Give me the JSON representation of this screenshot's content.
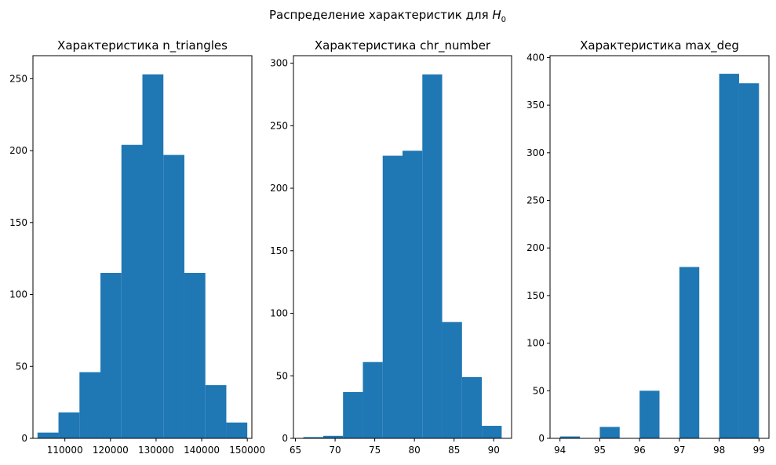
{
  "figure": {
    "suptitle_prefix": "Распределение характеристик для ",
    "suptitle_symbol": "H",
    "suptitle_subscript": "0"
  },
  "colors": {
    "bar": "#1f77b4",
    "axis": "#000000",
    "background": "#ffffff"
  },
  "chart_data": [
    {
      "type": "bar",
      "histogram": true,
      "title": "Характеристика n_triangles",
      "xlabel": "",
      "ylabel": "",
      "bin_edges": [
        104000,
        108600,
        113200,
        117800,
        122400,
        127000,
        131600,
        136200,
        140800,
        145400,
        150000
      ],
      "values": [
        4,
        18,
        46,
        115,
        204,
        253,
        197,
        115,
        37,
        11
      ],
      "xlim": [
        103000,
        151000
      ],
      "ylim": [
        0,
        266
      ],
      "xticks": [
        110000,
        120000,
        130000,
        140000,
        150000
      ],
      "yticks": [
        0,
        50,
        100,
        150,
        200,
        250
      ],
      "grid": false
    },
    {
      "type": "bar",
      "histogram": true,
      "title": "Характеристика chr_number",
      "xlabel": "",
      "ylabel": "",
      "bin_edges": [
        66,
        68.5,
        71,
        73.5,
        76,
        78.5,
        81,
        83.5,
        86,
        88.5,
        91
      ],
      "values": [
        1,
        2,
        37,
        61,
        226,
        230,
        291,
        93,
        49,
        10
      ],
      "xlim": [
        64.75,
        92.25
      ],
      "ylim": [
        0,
        306
      ],
      "xticks": [
        65,
        70,
        75,
        80,
        85,
        90
      ],
      "yticks": [
        0,
        50,
        100,
        150,
        200,
        250,
        300
      ],
      "grid": false
    },
    {
      "type": "bar",
      "histogram": true,
      "title": "Характеристика max_deg",
      "xlabel": "",
      "ylabel": "",
      "bin_edges": [
        94,
        94.5,
        95,
        95.5,
        96,
        96.5,
        97,
        97.5,
        98,
        98.5,
        99
      ],
      "values": [
        2,
        0,
        12,
        0,
        50,
        0,
        180,
        0,
        383,
        373
      ],
      "xlim": [
        93.75,
        99.25
      ],
      "ylim": [
        0,
        402
      ],
      "xticks": [
        94,
        95,
        96,
        97,
        98,
        99
      ],
      "yticks": [
        0,
        50,
        100,
        150,
        200,
        250,
        300,
        350,
        400
      ],
      "grid": false
    }
  ]
}
